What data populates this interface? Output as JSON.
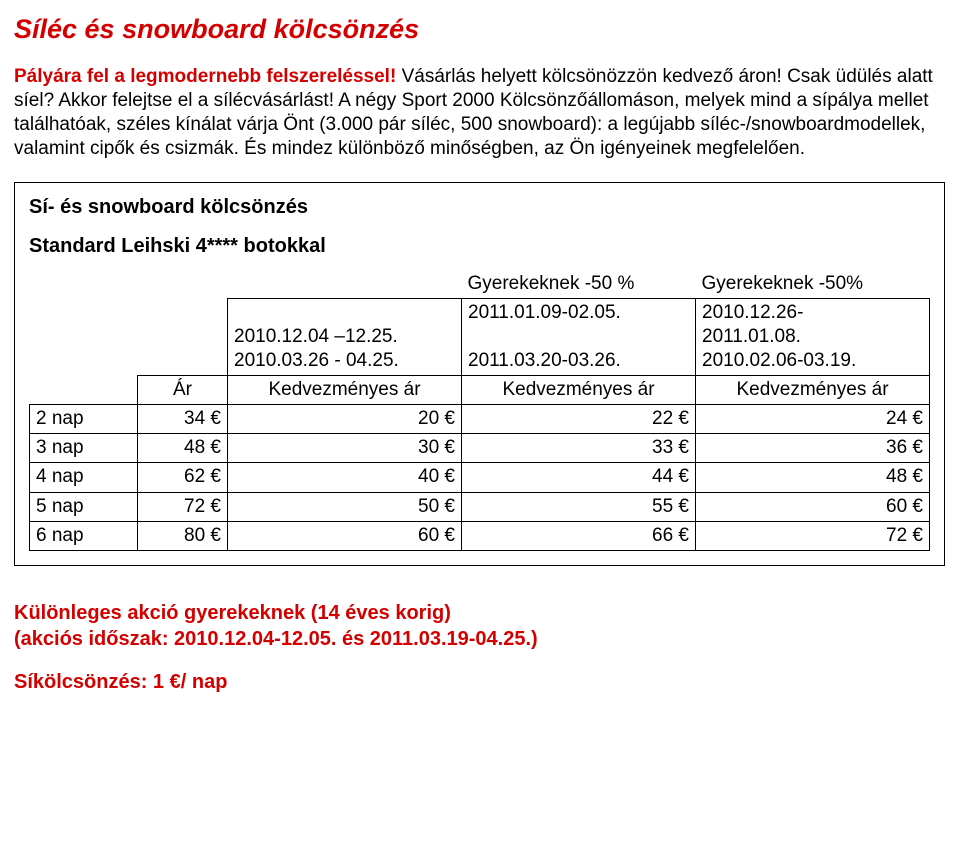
{
  "title": "Síléc és snowboard kölcsönzés",
  "intro": {
    "lead": "Pályára fel a legmodernebb felszereléssel!",
    "rest": " Vásárlás helyett kölcsönözzön kedvező áron! Csak üdülés alatt síel? Akkor felejtse el a sílécvásárlást! A négy Sport 2000 Kölcsönzőállomáson, melyek mind a sípálya mellet találhatóak, széles kínálat várja Önt (3.000 pár síléc, 500 snowboard): a legújabb síléc-/snowboardmodellek, valamint cipők és csizmák. És mindez különböző minőségben, az Ön igényeinek megfelelően."
  },
  "box": {
    "title": "Sí- és snowboard kölcsönzés",
    "subtitle": "Standard Leihski 4**** botokkal",
    "discount_col2": "Gyerekeknek -50 %",
    "discount_col3": "Gyerekeknek -50%",
    "dates_col1_line1": "2010.12.04 –12.25.",
    "dates_col1_line2": "2010.03.26 - 04.25.",
    "dates_col2_line1": "2011.01.09-02.05.",
    "dates_col2_line2": "2011.03.20-03.26.",
    "dates_col3_line1": "2010.12.26-",
    "dates_col3_line2": "2011.01.08.",
    "dates_col3_line3": "2010.02.06-03.19.",
    "ar_label": "Ár",
    "kedv_label": "Kedvezményes ár",
    "rows": [
      {
        "label": "2 nap",
        "ar": "34 €",
        "k1": "20 €",
        "k2": "22 €",
        "k3": "24 €"
      },
      {
        "label": "3 nap",
        "ar": "48 €",
        "k1": "30 €",
        "k2": "33 €",
        "k3": "36 €"
      },
      {
        "label": "4 nap",
        "ar": "62 €",
        "k1": "40 €",
        "k2": "44 €",
        "k3": "48 €"
      },
      {
        "label": "5 nap",
        "ar": "72 €",
        "k1": "50 €",
        "k2": "55 €",
        "k3": "60 €"
      },
      {
        "label": "6 nap",
        "ar": "80 €",
        "k1": "60 €",
        "k2": "66 €",
        "k3": "72 €"
      }
    ]
  },
  "promo": {
    "line1": "Különleges akció gyerekeknek (14 éves korig)",
    "line2": "(akciós időszak: 2010.12.04-12.05. és 2011.03.19-04.25.)",
    "line3": "Síkölcsönzés: 1 €/ nap"
  }
}
